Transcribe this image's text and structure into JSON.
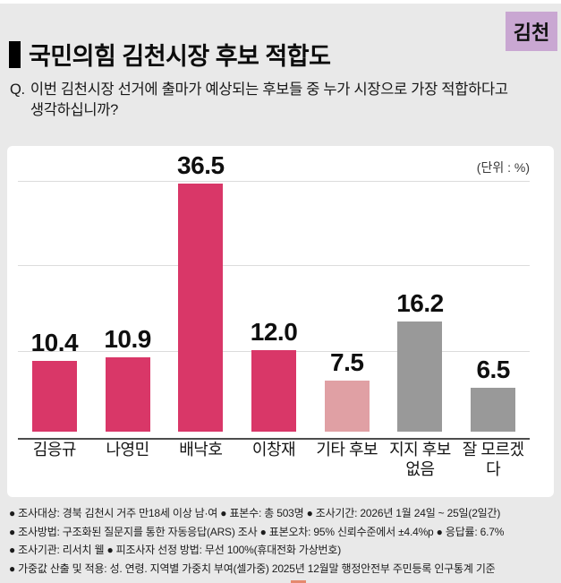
{
  "badge": {
    "label": "김천"
  },
  "header": {
    "title": "국민의힘 김천시장 후보 적합도",
    "question_prefix": "Q.",
    "question_lines": [
      "이번 김천시장 선거에 출마가 예상되는 후보들 중 누가 시장으로 가장 적합하다고",
      "생각하십니까?"
    ]
  },
  "chart_data": {
    "type": "bar",
    "title": "국민의힘 김천시장 후보 적합도",
    "unit_label": "(단위 : %)",
    "categories": [
      "김응규",
      "나영민",
      "배낙호",
      "이창재",
      "기타 후보",
      "지지 후보 없음",
      "잘 모르겠다"
    ],
    "categories_display": [
      "김응규",
      "나영민",
      "배낙호",
      "이창재",
      "기타 후보",
      "지지 후보\n없음",
      "잘 모르겠다"
    ],
    "values": [
      10.4,
      10.9,
      36.5,
      12.0,
      7.5,
      16.2,
      6.5
    ],
    "bar_colors": [
      "#d93768",
      "#d93768",
      "#d93768",
      "#d93768",
      "#e0a0a4",
      "#999999",
      "#999999"
    ],
    "xlabel": "",
    "ylabel": "",
    "ylim": [
      0,
      43
    ],
    "grid": true,
    "legend": false
  },
  "footer": {
    "notes": [
      "● 조사대상: 경북 김천시 거주 만18세 이상 남·여 ● 표본수: 총 503명 ● 조사기간: 2026년 1월 24일 ~ 25일(2일간)",
      "● 조사방법: 구조화된 질문지를 통한 자동응답(ARS) 조사 ● 표본오차: 95% 신뢰수준에서 ±4.4%p ● 응답률: 6.7%",
      "● 조사기관: 리서치 웰 ● 피조사자 선정 방법: 무선 100%(휴대전화 가상번호)",
      "● 가중값 산출 및 적용: 성. 연령. 지역별 가중치 부여(셀가중) 2025년 12월말 행정안전부 주민등록 인구통계 기준"
    ]
  },
  "colors": {
    "background": "#e9e9e9",
    "card": "#ffffff",
    "bar_main": "#d93768",
    "bar_light_pink": "#e0a0a4",
    "bar_gray": "#999999",
    "badge_bg": "#c9a7d2",
    "axis": "#4d4d4d",
    "gridline": "#dcdcdc",
    "bottom_mark": "#e5896e"
  }
}
